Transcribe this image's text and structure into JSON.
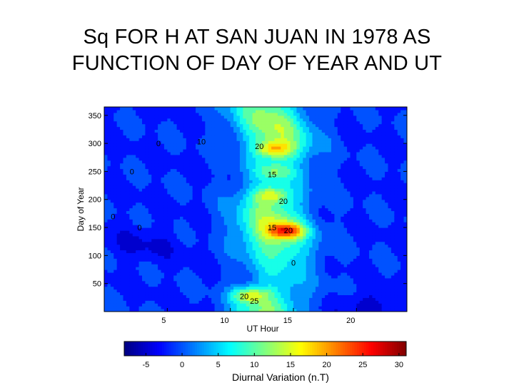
{
  "title_line1": "Sq FOR H AT SAN JUAN IN 1978 AS",
  "title_line2": "FUNCTION OF DAY OF YEAR AND UT",
  "chart_data": {
    "type": "heatmap",
    "subtype": "filled-contour",
    "xlabel": "UT Hour",
    "ylabel": "Day of Year",
    "colorbar_label": "Diurnal Variation (n.T)",
    "colormap": "jet",
    "xlim": [
      0,
      24
    ],
    "ylim": [
      0,
      365
    ],
    "x_ticks": [
      5,
      10,
      15,
      20
    ],
    "y_ticks": [
      50,
      100,
      150,
      200,
      250,
      300,
      350
    ],
    "colorbar_range": [
      -8,
      31
    ],
    "colorbar_ticks": [
      -5,
      0,
      5,
      10,
      15,
      20,
      25,
      30
    ],
    "contour_labels": [
      {
        "text": "0",
        "x": 4.3,
        "y": 295
      },
      {
        "text": "10",
        "x": 7.7,
        "y": 298
      },
      {
        "text": "20",
        "x": 12.3,
        "y": 290
      },
      {
        "text": "0",
        "x": 2.2,
        "y": 245
      },
      {
        "text": "15",
        "x": 13.3,
        "y": 240
      },
      {
        "text": "20",
        "x": 14.2,
        "y": 192
      },
      {
        "text": "0",
        "x": 0.7,
        "y": 165
      },
      {
        "text": "0",
        "x": 2.8,
        "y": 145
      },
      {
        "text": "15",
        "x": 13.3,
        "y": 145
      },
      {
        "text": "20",
        "x": 14.6,
        "y": 140
      },
      {
        "text": "0",
        "x": 15.0,
        "y": 82
      },
      {
        "text": "20",
        "x": 11.1,
        "y": 22
      },
      {
        "text": "25",
        "x": 11.9,
        "y": 14
      }
    ],
    "peaks": [
      {
        "x": 14.5,
        "y": 145,
        "value": 30
      },
      {
        "x": 11.5,
        "y": 30,
        "value": 26
      },
      {
        "x": 13.5,
        "y": 290,
        "value": 25
      },
      {
        "x": 13.2,
        "y": 208,
        "value": 23
      },
      {
        "x": 13.5,
        "y": 250,
        "value": 20
      }
    ]
  }
}
